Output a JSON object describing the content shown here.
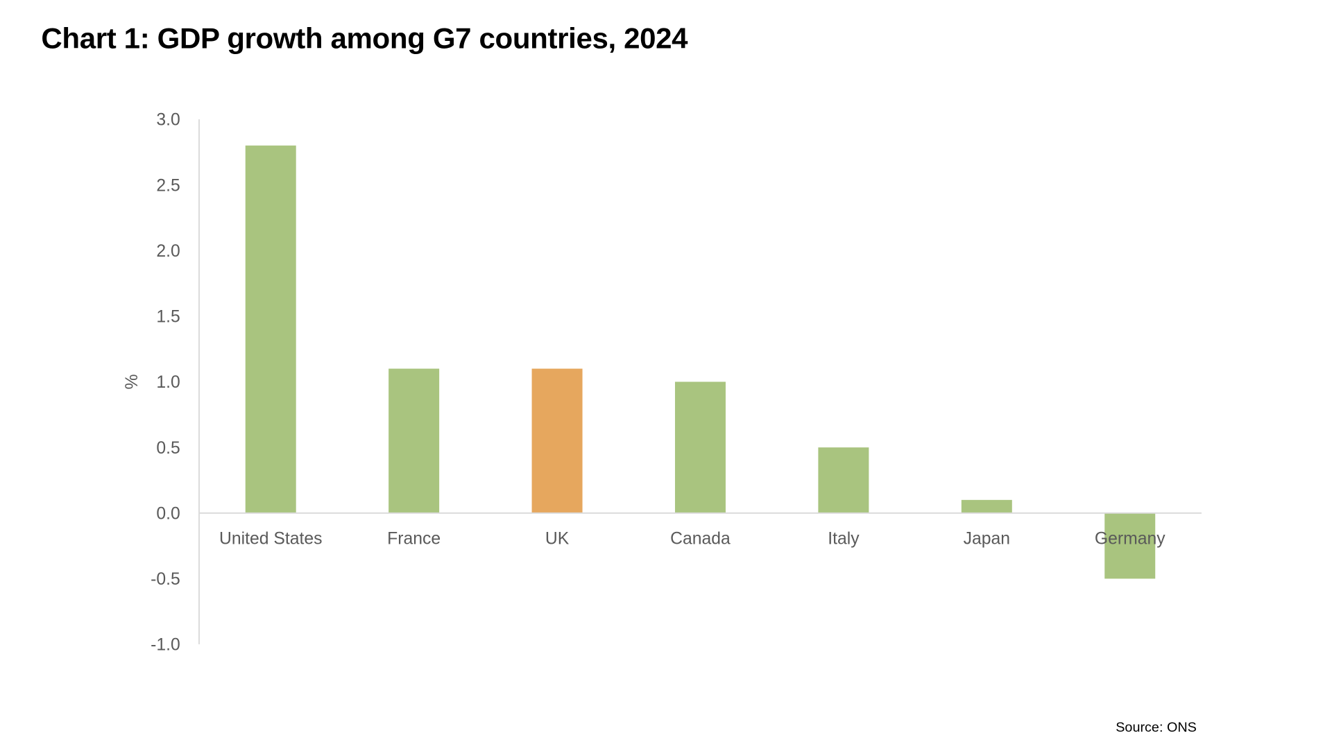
{
  "chart_data": {
    "type": "bar",
    "title": "Chart 1: GDP growth among G7 countries, 2024",
    "ylabel": "%",
    "xlabel": "",
    "categories": [
      "United States",
      "France",
      "UK",
      "Canada",
      "Italy",
      "Japan",
      "Germany"
    ],
    "values": [
      2.8,
      1.1,
      1.1,
      1.0,
      0.5,
      0.1,
      -0.5
    ],
    "ylim": [
      -1.0,
      3.0
    ],
    "yticks": [
      "3.0",
      "2.5",
      "2.0",
      "1.5",
      "1.0",
      "0.5",
      "0.0",
      "-0.5",
      "-1.0"
    ],
    "ytick_values": [
      3.0,
      2.5,
      2.0,
      1.5,
      1.0,
      0.5,
      0.0,
      -0.5,
      -1.0
    ],
    "grid": false,
    "legend": "none",
    "colors": {
      "default": "#a9c47f",
      "highlight": "#e6a75e",
      "highlight_category": "UK",
      "axis": "#d9d9d9"
    },
    "source": "Source: ONS"
  }
}
